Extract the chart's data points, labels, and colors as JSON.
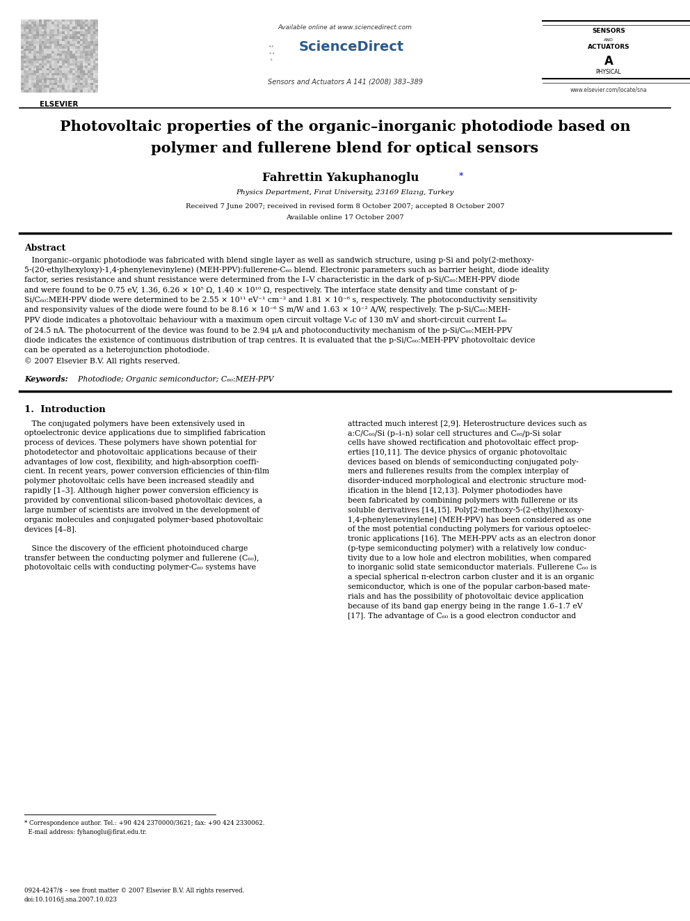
{
  "page_width": 9.92,
  "page_height": 13.23,
  "dpi": 100,
  "bg_color": "#ffffff",
  "text_color": "#000000",
  "blue_color": "#0000cd",
  "header": {
    "available_online": "Available online at www.sciencedirect.com",
    "sciencedirect": "ScienceDirect",
    "journal": "Sensors and Actuators A 141 (2008) 383–389",
    "elsevier": "ELSEVIER",
    "website": "www.elsevier.com/locate/sna"
  },
  "title_line1": "Photovoltaic properties of the organic–inorganic photodiode based on",
  "title_line2": "polymer and fullerene blend for optical sensors",
  "author": "Fahrettin Yakuphanoglu",
  "affiliation": "Physics Department, Fırat University, 23169 Elazıg, Turkey",
  "dates_line1": "Received 7 June 2007; received in revised form 8 October 2007; accepted 8 October 2007",
  "dates_line2": "Available online 17 October 2007",
  "abstract_title": "Abstract",
  "keywords_label": "Keywords:",
  "keywords_text": "  Photodiode; Organic semiconductor; C₆₀:MEH-PPV",
  "section1_title": "1.  Introduction",
  "footnote_line1": "* Correspondence author. Tel.: +90 424 2370000/3621; fax: +90 424 2330062.",
  "footnote_line2": "  E-mail address: fyhanoglu@firat.edu.tr.",
  "copyright_line1": "0924-4247/$ – see front matter © 2007 Elsevier B.V. All rights reserved.",
  "copyright_line2": "doi:10.1016/j.sna.2007.10.023"
}
